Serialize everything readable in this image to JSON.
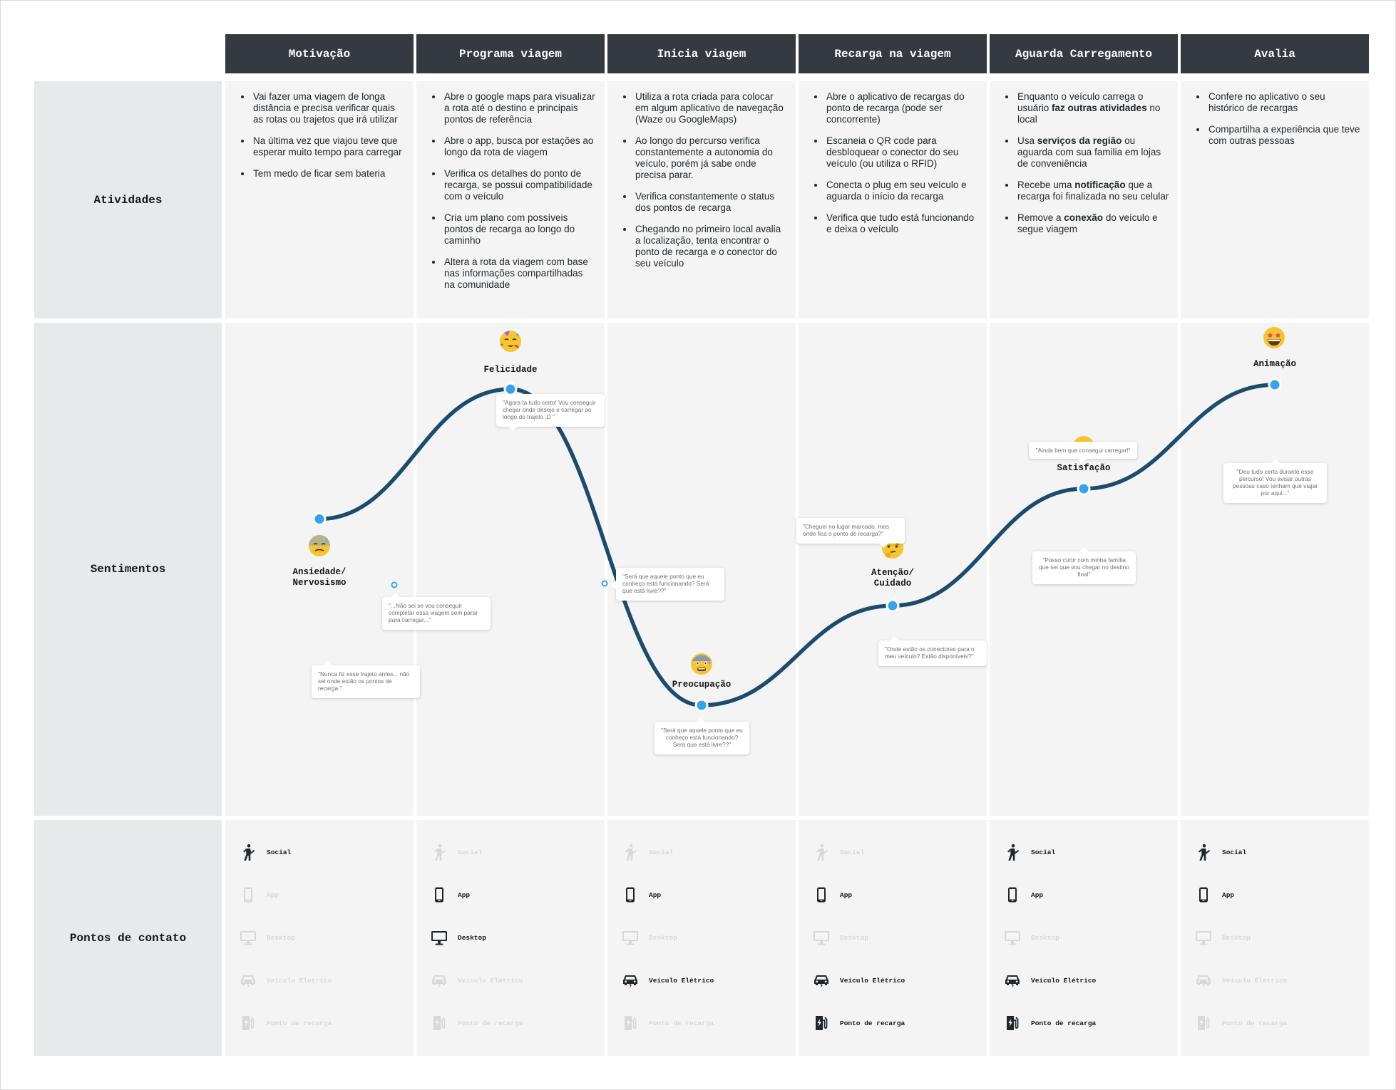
{
  "stages": [
    {
      "title": "Motivação",
      "activities": [
        "Vai fazer uma viagem de longa distância e precisa verificar quais as rotas ou trajetos que irá utilizar",
        "Na última vez que viajou teve que esperar muito tempo para carregar",
        "Tem medo de ficar sem bateria"
      ]
    },
    {
      "title": "Programa viagem",
      "activities": [
        "Abre o google maps para visualizar a rota até o destino e principais pontos de referência",
        "Abre o app, busca por estações ao longo da rota de viagem",
        "Verifica os detalhes do ponto de recarga, se possui compatibilidade com o veículo",
        "Cria um plano com possíveis pontos de recarga ao longo do caminho",
        "Altera a rota da viagem com base nas informações compartilhadas na comunidade"
      ]
    },
    {
      "title": "Inicia viagem",
      "activities": [
        "Utiliza a rota criada para colocar em algum aplicativo de navegação (Waze ou GoogleMaps)",
        "Ao longo do percurso verifica constantemente a autonomia do veículo, porém já sabe onde precisa parar.",
        "Verifica constantemente o status dos pontos de recarga",
        "Chegando no primeiro local avalia a localização, tenta encontrar o ponto de recarga e o conector do seu veículo"
      ]
    },
    {
      "title": "Recarga na viagem",
      "activities": [
        "Abre o aplicativo de recargas do ponto de recarga (pode ser concorrente)",
        "Escaneia o QR code para desbloquear o conector do seu veículo (ou utiliza o RFID)",
        "Conecta o plug em seu veículo e aguarda o início da recarga",
        "Verifica que tudo está funcionando e deixa o veículo"
      ]
    },
    {
      "title": "Aguarda Carregamento",
      "activities": [
        "Enquanto o veículo carrega o usuário <b>faz outras atividades</b> no local",
        "Usa <b>serviços da região</b> ou aguarda com sua familia em lojas de conveniência",
        "Recebe uma <b>notificação</b> que a recarga foi finalizada no seu celular",
        "Remove a <b>conexão</b> do veículo e segue viagem"
      ]
    },
    {
      "title": "Avalia",
      "activities": [
        "Confere no aplicativo o seu histórico de recargas",
        "Compartilha a experiência que teve com outras pessoas"
      ]
    }
  ],
  "row_labels": {
    "activities": "Atividades",
    "feelings": "Sentimentos",
    "touchpoints": "Pontos de contato"
  },
  "emotions": [
    {
      "label": "Ansiedade/\nNervosismo",
      "emoji": "anxious-sweat-face-icon",
      "level": 0.43
    },
    {
      "label": "Felicidade",
      "emoji": "party-face-icon",
      "level": 0.73
    },
    {
      "label": "Preocupação",
      "emoji": "fearful-face-icon",
      "level": 0.0
    },
    {
      "label": "Atenção/\nCuidado",
      "emoji": "thinking-face-icon",
      "level": 0.23
    },
    {
      "label": "Satisfação",
      "emoji": "grinning-face-icon",
      "level": 0.5
    },
    {
      "label": "Animação",
      "emoji": "star-struck-face-icon",
      "level": 0.74
    }
  ],
  "quotes": [
    "\"Nunca fiz esse trajeto antes... não sei onde estão os pontos de recarga.\"",
    "\"...Não sei se vou conseguir completar essa viagem sem parar para carregar...\"",
    "\"Agora ta tudo certo! Vou conseguir chegar onde desejo e carregar ao longo do trajeto :D \"",
    "\"Será que aquele ponto que eu conheço está funcionando? Será que está livre??\"",
    "\"Será que aquele ponto que eu conheço está funcionando? Será que está livre??\"",
    "\"Cheguei no lugar marcado, mas onde fica o ponto de recarga?\"",
    "\"Onde estão os conectores para o meu veículo? Estão disponíveis?\"",
    "\"Ainda bem que consegui carregar!\"",
    "\"Posso curtir com minha família que sei que vou chegar no destino final\"",
    "\"Deu tudo certo durante esse percurso! Vou avisar outras pessoas caso tenham que viajar por aqui...\""
  ],
  "touchpoint_types": [
    "Social",
    "App",
    "Desktop",
    "Veículo Elétrico",
    "Ponto de recarga"
  ],
  "touchpoint_icons": [
    "person-waving-icon",
    "smartphone-icon",
    "desktop-monitor-icon",
    "electric-car-icon",
    "charging-station-icon"
  ],
  "touchpoints_active": [
    [
      true,
      false,
      false,
      false,
      false
    ],
    [
      false,
      true,
      true,
      false,
      false
    ],
    [
      false,
      true,
      false,
      true,
      false
    ],
    [
      false,
      true,
      false,
      true,
      true
    ],
    [
      true,
      true,
      false,
      true,
      true
    ],
    [
      true,
      true,
      false,
      false,
      false
    ]
  ],
  "colors": {
    "header": "#343a3f",
    "curve": "#1b4b6e",
    "dot": "#33a3f0",
    "cell": "#f4f4f4",
    "label_bg": "#e8e9eb"
  }
}
